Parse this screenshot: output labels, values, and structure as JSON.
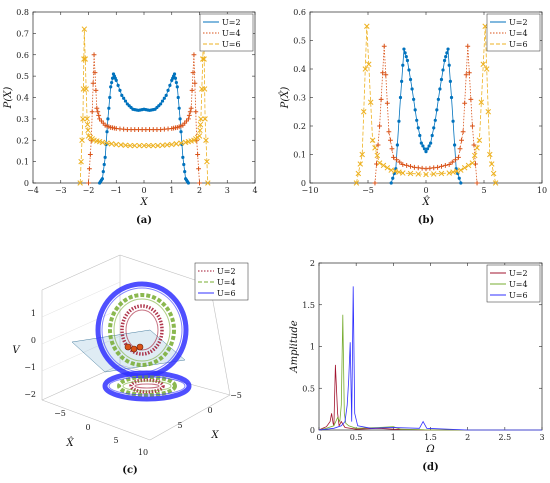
{
  "colors": {
    "U2_ab": "#0072bd",
    "U4_ab": "#d95319",
    "U6_ab": "#edb120",
    "U2_d": "#a2142f",
    "U4_d": "#77ac30",
    "U6_d": "#3030ff"
  },
  "chart_data": [
    {
      "type": "line",
      "panel_label": "(a)",
      "xlabel": "X",
      "ylabel": "P(X)",
      "xlim": [
        -4,
        4
      ],
      "ylim": [
        0,
        0.8
      ],
      "xticks": [
        "-4",
        "-3",
        "-2",
        "-1",
        "0",
        "1",
        "2",
        "3",
        "4"
      ],
      "yticks": [
        "0",
        "0.1",
        "0.2",
        "0.3",
        "0.4",
        "0.5",
        "0.6",
        "0.7",
        "0.8"
      ],
      "legend_position": "top-right",
      "series": [
        {
          "name": "U=2",
          "line": "solid",
          "marker": "*",
          "x": [
            -1.6,
            -1.5,
            -1.4,
            -1.3,
            -1.2,
            -1.1,
            -1.0,
            -0.8,
            -0.6,
            -0.4,
            -0.2,
            0,
            0.2,
            0.4,
            0.6,
            0.8,
            1.0,
            1.1,
            1.2,
            1.3,
            1.4,
            1.5,
            1.6
          ],
          "y": [
            0,
            0.02,
            0.12,
            0.3,
            0.45,
            0.51,
            0.48,
            0.41,
            0.37,
            0.345,
            0.34,
            0.345,
            0.34,
            0.345,
            0.37,
            0.41,
            0.48,
            0.51,
            0.45,
            0.3,
            0.12,
            0.02,
            0
          ]
        },
        {
          "name": "U=4",
          "line": "dotted",
          "marker": "+",
          "x": [
            -2.0,
            -1.9,
            -1.8,
            -1.7,
            -1.6,
            -1.4,
            -1.2,
            -1.0,
            -0.6,
            -0.2,
            0.2,
            0.6,
            1.0,
            1.2,
            1.4,
            1.6,
            1.7,
            1.8,
            1.9,
            2.0
          ],
          "y": [
            0,
            0.2,
            0.6,
            0.35,
            0.3,
            0.27,
            0.26,
            0.255,
            0.25,
            0.25,
            0.25,
            0.25,
            0.255,
            0.26,
            0.27,
            0.3,
            0.35,
            0.6,
            0.2,
            0
          ],
          "yalt": null
        },
        {
          "name": "U=6",
          "line": "dashed",
          "marker": "x",
          "x": [
            -2.3,
            -2.2,
            -2.15,
            -2.05,
            -2.0,
            -1.8,
            -1.5,
            -1.0,
            -0.5,
            0,
            0.5,
            1.0,
            1.5,
            1.8,
            2.0,
            2.05,
            2.15,
            2.2,
            2.3
          ],
          "y": [
            0,
            0.3,
            0.72,
            0.3,
            0.22,
            0.2,
            0.19,
            0.18,
            0.175,
            0.175,
            0.175,
            0.18,
            0.19,
            0.2,
            0.22,
            0.3,
            0.72,
            0.3,
            0
          ]
        }
      ]
    },
    {
      "type": "line",
      "panel_label": "(b)",
      "xlabel": "X̂",
      "ylabel": "P(X̂)",
      "xlim": [
        -10,
        10
      ],
      "ylim": [
        0,
        0.6
      ],
      "xticks": [
        "-10",
        "-5",
        "0",
        "5",
        "10"
      ],
      "yticks": [
        "0",
        "0.1",
        "0.2",
        "0.3",
        "0.4",
        "0.5",
        "0.6"
      ],
      "legend_position": "top-right",
      "series": [
        {
          "name": "U=2",
          "line": "solid",
          "marker": "*",
          "x": [
            -3,
            -2.6,
            -2.2,
            -1.9,
            -1.6,
            -1.2,
            -0.8,
            -0.4,
            0,
            0.4,
            0.8,
            1.2,
            1.6,
            1.9,
            2.2,
            2.6,
            3
          ],
          "y": [
            0,
            0.05,
            0.3,
            0.47,
            0.43,
            0.33,
            0.22,
            0.14,
            0.11,
            0.14,
            0.22,
            0.33,
            0.43,
            0.47,
            0.3,
            0.05,
            0
          ]
        },
        {
          "name": "U=4",
          "line": "dotted",
          "marker": "+",
          "x": [
            -4.4,
            -4.0,
            -3.6,
            -3.2,
            -2.8,
            -2.0,
            -1.0,
            0,
            1.0,
            2.0,
            2.8,
            3.2,
            3.6,
            4.0,
            4.4
          ],
          "y": [
            0,
            0.2,
            0.48,
            0.18,
            0.09,
            0.065,
            0.055,
            0.05,
            0.055,
            0.065,
            0.09,
            0.18,
            0.48,
            0.2,
            0
          ]
        },
        {
          "name": "U=6",
          "line": "dashed",
          "marker": "x",
          "x": [
            -6,
            -5.5,
            -5.1,
            -4.6,
            -4.0,
            -3.0,
            -2.0,
            0,
            2.0,
            3.0,
            4.0,
            4.6,
            5.1,
            5.5,
            6
          ],
          "y": [
            0,
            0.1,
            0.55,
            0.15,
            0.07,
            0.045,
            0.035,
            0.03,
            0.035,
            0.045,
            0.07,
            0.15,
            0.55,
            0.1,
            0
          ]
        }
      ]
    },
    {
      "type": "scatter",
      "panel_label": "(c)",
      "zlabel": "V",
      "xlabel": "X",
      "hatlabel": "X̂",
      "zticks": [
        "1",
        "0",
        "-1",
        "-2"
      ],
      "xticks": [
        "-5",
        "0",
        "5"
      ],
      "hatticks": [
        "-5",
        "0",
        "5",
        "10"
      ],
      "legend_position": "top-right",
      "series": [
        {
          "name": "U=2",
          "line": "dotted"
        },
        {
          "name": "U=4",
          "line": "dashed"
        },
        {
          "name": "U=6",
          "line": "solid"
        }
      ]
    },
    {
      "type": "line",
      "panel_label": "(d)",
      "xlabel": "Ω",
      "ylabel": "Amplitude",
      "xlim": [
        0,
        3
      ],
      "ylim": [
        0,
        2
      ],
      "xticks": [
        "0",
        "0.5",
        "1",
        "1.5",
        "2",
        "2.5",
        "3"
      ],
      "yticks": [
        "0",
        "0.5",
        "1",
        "1.5",
        "2"
      ],
      "legend_position": "top-right",
      "series": [
        {
          "name": "U=2",
          "x": [
            0,
            0.05,
            0.1,
            0.15,
            0.17,
            0.19,
            0.2,
            0.22,
            0.25,
            0.27,
            0.3,
            0.35,
            0.5,
            0.8,
            1.0,
            1.5,
            3
          ],
          "y": [
            0,
            0.02,
            0.04,
            0.1,
            0.2,
            0.08,
            0.05,
            0.78,
            0.2,
            0.05,
            0.1,
            0.03,
            0.01,
            0.02,
            0.01,
            0,
            0
          ]
        },
        {
          "name": "U=4",
          "x": [
            0,
            0.1,
            0.2,
            0.25,
            0.28,
            0.3,
            0.32,
            0.34,
            0.36,
            0.4,
            0.5,
            0.8,
            1.0,
            1.1,
            1.5,
            3
          ],
          "y": [
            0,
            0.02,
            0.05,
            0.15,
            0.1,
            0.3,
            1.38,
            0.2,
            0.08,
            0.05,
            0.02,
            0.03,
            0.04,
            0.01,
            0,
            0
          ]
        },
        {
          "name": "U=6",
          "x": [
            0,
            0.2,
            0.3,
            0.35,
            0.38,
            0.4,
            0.42,
            0.44,
            0.46,
            0.48,
            0.52,
            0.7,
            1.0,
            1.35,
            1.4,
            1.45,
            2.0,
            3
          ],
          "y": [
            0,
            0.02,
            0.05,
            0.1,
            0.3,
            0.6,
            1.05,
            0.1,
            1.72,
            0.2,
            0.05,
            0.02,
            0.03,
            0.02,
            0.1,
            0.02,
            0,
            0
          ]
        }
      ]
    }
  ]
}
